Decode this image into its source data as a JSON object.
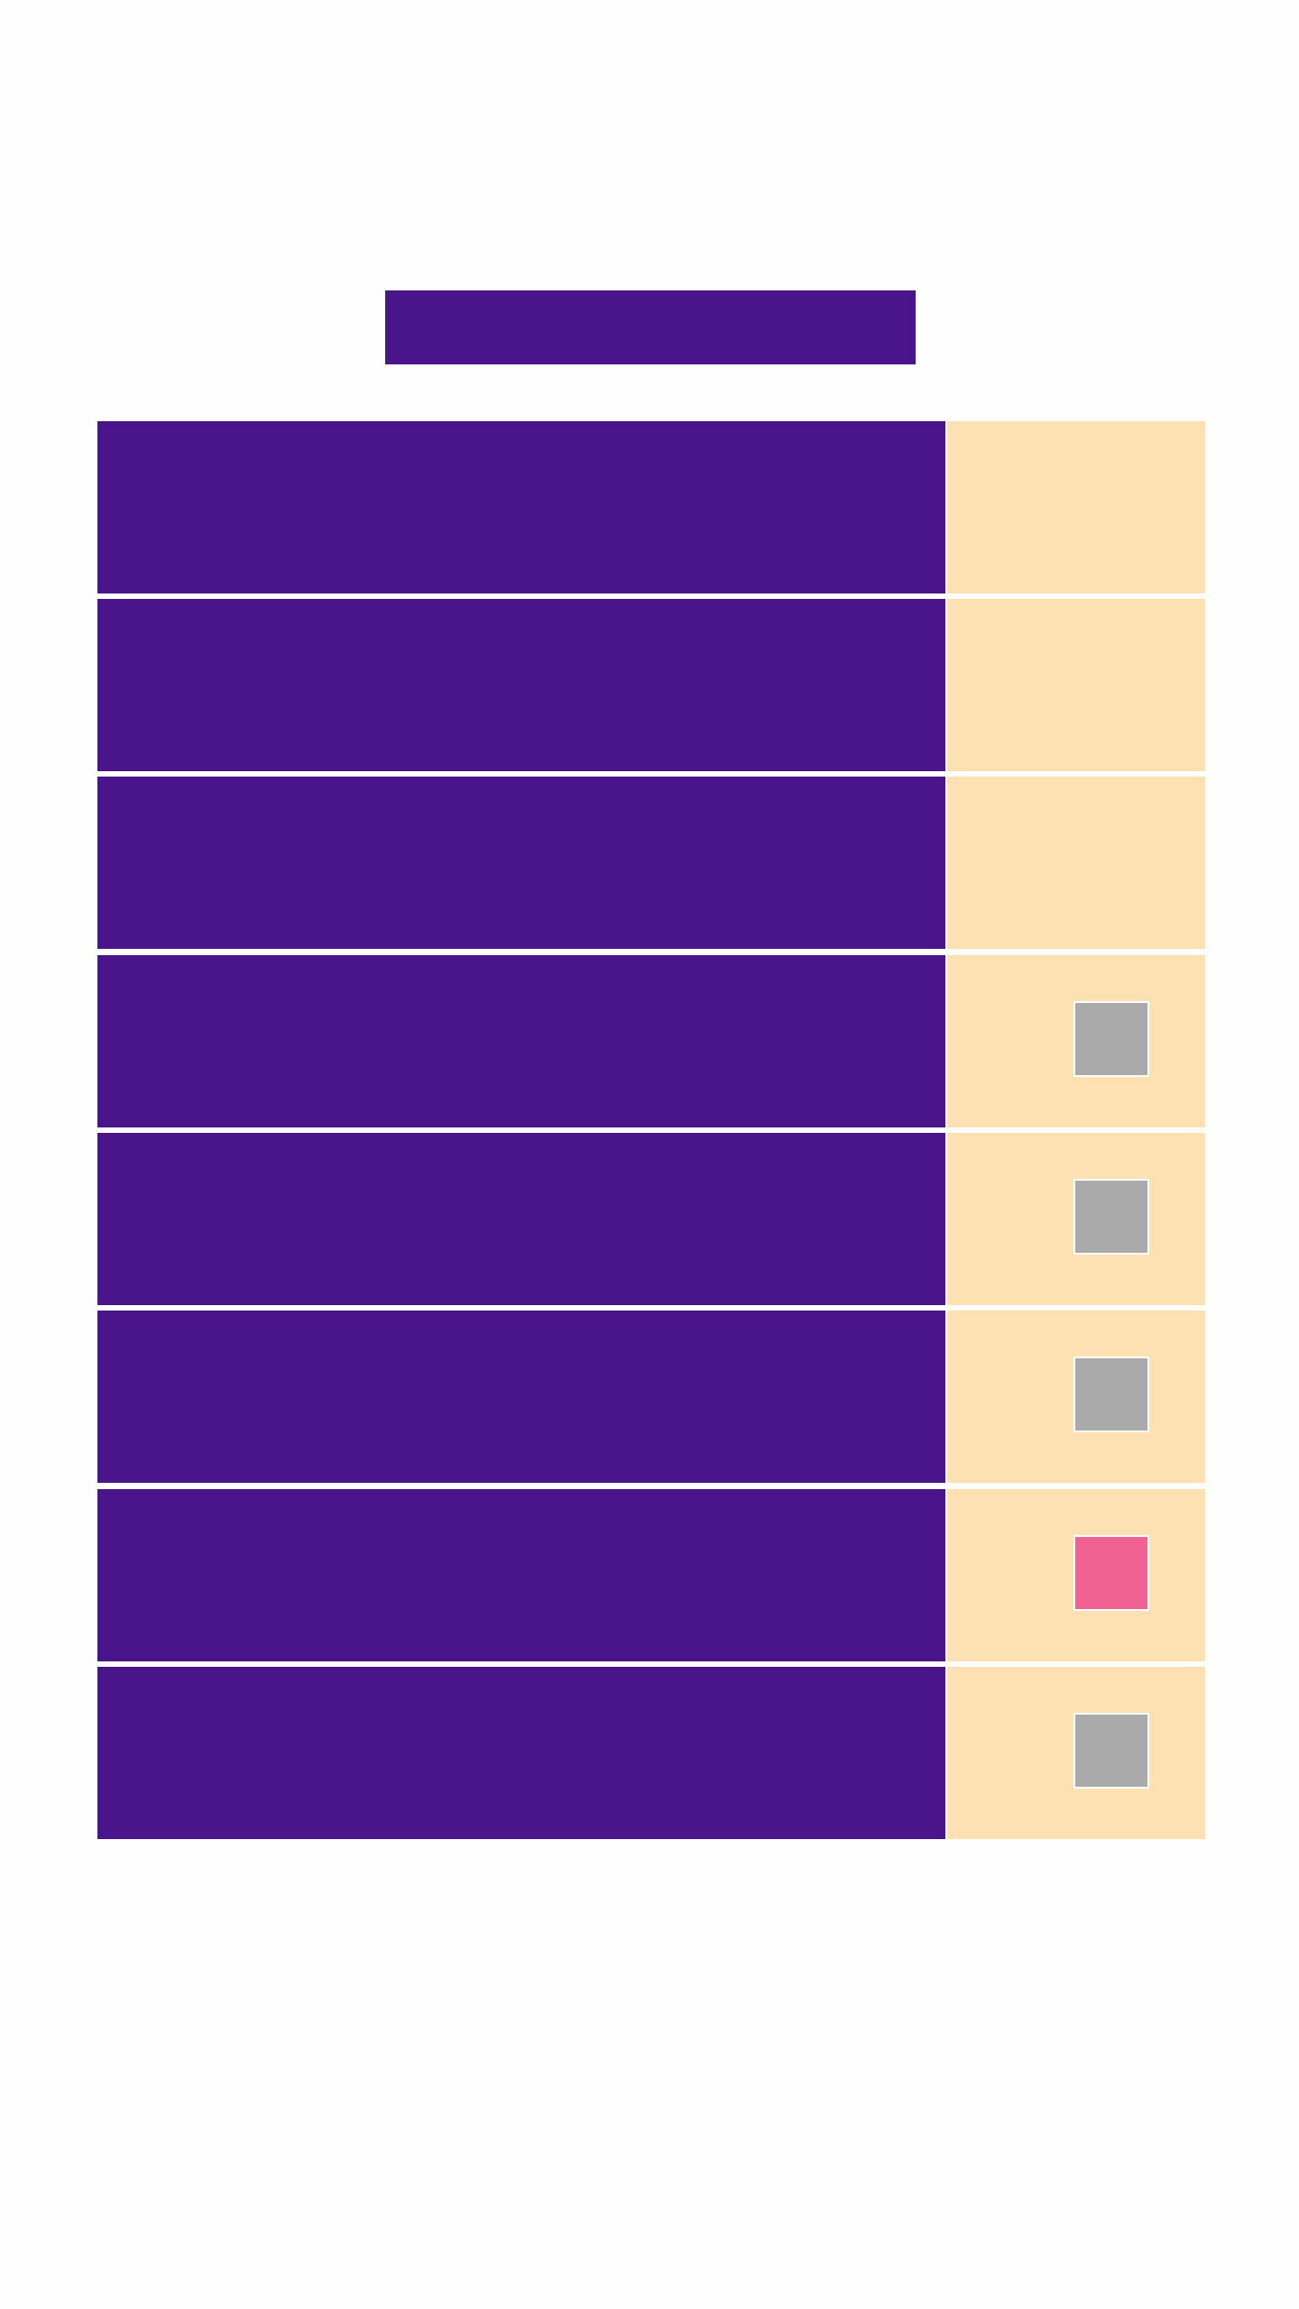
{
  "header": {
    "title": ""
  },
  "colors": {
    "primary": "#4a148a",
    "side_panel": "#fee1b3",
    "checkbox_off": "#aaaaaa",
    "checkbox_on": "#f06292"
  },
  "rows": [
    {
      "label": "",
      "has_checkbox": false,
      "checked": false
    },
    {
      "label": "",
      "has_checkbox": false,
      "checked": false
    },
    {
      "label": "",
      "has_checkbox": false,
      "checked": false
    },
    {
      "label": "",
      "has_checkbox": true,
      "checked": false
    },
    {
      "label": "",
      "has_checkbox": true,
      "checked": false
    },
    {
      "label": "",
      "has_checkbox": true,
      "checked": false
    },
    {
      "label": "",
      "has_checkbox": true,
      "checked": true
    },
    {
      "label": "",
      "has_checkbox": true,
      "checked": false
    }
  ]
}
